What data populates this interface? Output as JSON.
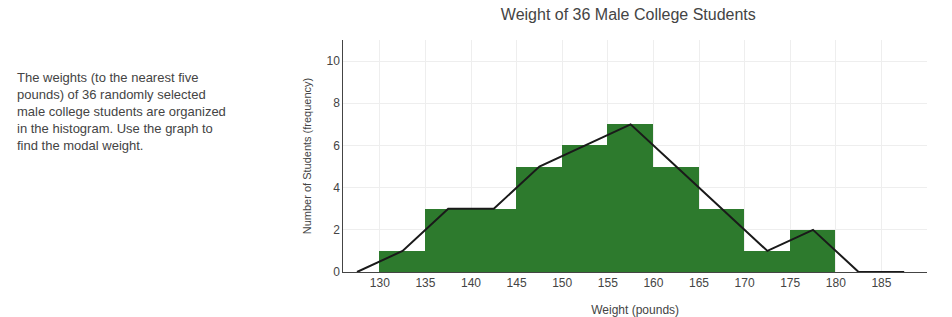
{
  "chart_data": {
    "type": "histogram",
    "title": "Weight of 36 Male College Students",
    "xlabel": "Weight (pounds)",
    "ylabel": "Number of Students (frequency)",
    "annotations": [
      "The weights (to the nearest five\npounds) of 36 randomly selected\nmale college students are organized\nin the histogram. Use the graph to\nfind the modal weight."
    ],
    "bins": [
      130,
      135,
      140,
      145,
      150,
      155,
      160,
      165,
      170,
      175,
      180,
      185
    ],
    "series": [
      {
        "type": "histogram",
        "values": [
          1,
          3,
          3,
          5,
          6,
          7,
          5,
          3,
          1,
          2,
          0
        ],
        "color": "#2d7a2d"
      },
      {
        "type": "line",
        "x": [
          127.5,
          132.5,
          137.5,
          142.5,
          147.5,
          152.5,
          157.5,
          162.5,
          167.5,
          172.5,
          177.5,
          182.5,
          187.5
        ],
        "values": [
          0,
          1,
          3,
          3,
          5,
          6,
          7,
          5,
          3,
          1,
          2,
          0,
          0
        ],
        "color": "#1a1a1a"
      }
    ],
    "xlim": [
      126,
      190
    ],
    "ylim": [
      0,
      11
    ],
    "xticks": [
      130,
      135,
      140,
      145,
      150,
      155,
      160,
      165,
      170,
      175,
      180,
      185
    ],
    "yticks": [
      0,
      2,
      4,
      6,
      8,
      10
    ],
    "grid": true
  }
}
